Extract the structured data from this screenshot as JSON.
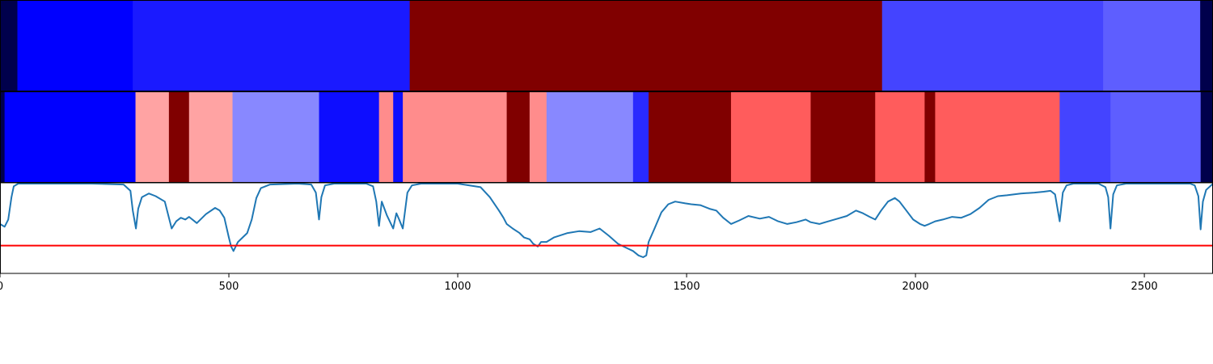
{
  "chart_data": {
    "type": "heatmap",
    "x_range": [
      0,
      2650
    ],
    "x_ticks": [
      0,
      500,
      1000,
      1500,
      2000,
      2500
    ],
    "tracks": [
      {
        "name": "",
        "segments": [
          {
            "start": 0,
            "end": 38,
            "color": "#00004c"
          },
          {
            "start": 38,
            "end": 290,
            "color": "#0000ff"
          },
          {
            "start": 290,
            "end": 895,
            "color": "#1a1aff"
          },
          {
            "start": 895,
            "end": 1927,
            "color": "#800000"
          },
          {
            "start": 1927,
            "end": 2410,
            "color": "#4444ff"
          },
          {
            "start": 2410,
            "end": 2622,
            "color": "#5e5eff"
          },
          {
            "start": 2622,
            "end": 2650,
            "color": "#00004c"
          }
        ]
      },
      {
        "name": "",
        "segments": [
          {
            "start": 0,
            "end": 10,
            "color": "#00004c"
          },
          {
            "start": 10,
            "end": 296,
            "color": "#0000ff"
          },
          {
            "start": 296,
            "end": 369,
            "color": "#ffa3a3"
          },
          {
            "start": 369,
            "end": 413,
            "color": "#800000"
          },
          {
            "start": 413,
            "end": 508,
            "color": "#ffa3a3"
          },
          {
            "start": 508,
            "end": 697,
            "color": "#8888ff"
          },
          {
            "start": 697,
            "end": 828,
            "color": "#0d0dff"
          },
          {
            "start": 828,
            "end": 859,
            "color": "#ff8c8c"
          },
          {
            "start": 859,
            "end": 880,
            "color": "#0d0dff"
          },
          {
            "start": 880,
            "end": 1107,
            "color": "#ff8c8c"
          },
          {
            "start": 1107,
            "end": 1157,
            "color": "#800000"
          },
          {
            "start": 1157,
            "end": 1194,
            "color": "#ff8c8c"
          },
          {
            "start": 1194,
            "end": 1383,
            "color": "#8888ff"
          },
          {
            "start": 1383,
            "end": 1417,
            "color": "#2a2aff"
          },
          {
            "start": 1417,
            "end": 1597,
            "color": "#800000"
          },
          {
            "start": 1597,
            "end": 1771,
            "color": "#ff5c5c"
          },
          {
            "start": 1771,
            "end": 1912,
            "color": "#800000"
          },
          {
            "start": 1912,
            "end": 2020,
            "color": "#ff5c5c"
          },
          {
            "start": 2020,
            "end": 2043,
            "color": "#800000"
          },
          {
            "start": 2043,
            "end": 2315,
            "color": "#ff5c5c"
          },
          {
            "start": 2315,
            "end": 2426,
            "color": "#4444ff"
          },
          {
            "start": 2426,
            "end": 2623,
            "color": "#5e5eff"
          },
          {
            "start": 2623,
            "end": 2650,
            "color": "#00004c"
          }
        ]
      }
    ],
    "line_panel": {
      "type": "line",
      "series": [
        {
          "color": "#1f77b4",
          "points": [
            [
              0,
              0.55
            ],
            [
              10,
              0.52
            ],
            [
              18,
              0.6
            ],
            [
              25,
              0.85
            ],
            [
              30,
              0.97
            ],
            [
              40,
              1.0
            ],
            [
              100,
              1.0
            ],
            [
              200,
              1.0
            ],
            [
              270,
              0.99
            ],
            [
              285,
              0.92
            ],
            [
              290,
              0.7
            ],
            [
              297,
              0.5
            ],
            [
              302,
              0.72
            ],
            [
              310,
              0.85
            ],
            [
              325,
              0.89
            ],
            [
              340,
              0.86
            ],
            [
              360,
              0.8
            ],
            [
              369,
              0.62
            ],
            [
              375,
              0.5
            ],
            [
              385,
              0.58
            ],
            [
              395,
              0.62
            ],
            [
              405,
              0.6
            ],
            [
              413,
              0.63
            ],
            [
              430,
              0.56
            ],
            [
              450,
              0.66
            ],
            [
              470,
              0.73
            ],
            [
              480,
              0.7
            ],
            [
              490,
              0.62
            ],
            [
              500,
              0.4
            ],
            [
              505,
              0.3
            ],
            [
              510,
              0.25
            ],
            [
              515,
              0.3
            ],
            [
              520,
              0.35
            ],
            [
              530,
              0.4
            ],
            [
              540,
              0.45
            ],
            [
              550,
              0.6
            ],
            [
              560,
              0.84
            ],
            [
              570,
              0.95
            ],
            [
              590,
              0.99
            ],
            [
              650,
              1.0
            ],
            [
              680,
              0.99
            ],
            [
              690,
              0.9
            ],
            [
              697,
              0.6
            ],
            [
              702,
              0.85
            ],
            [
              710,
              0.98
            ],
            [
              730,
              1.0
            ],
            [
              800,
              1.0
            ],
            [
              815,
              0.97
            ],
            [
              822,
              0.8
            ],
            [
              828,
              0.53
            ],
            [
              834,
              0.8
            ],
            [
              845,
              0.65
            ],
            [
              859,
              0.5
            ],
            [
              866,
              0.67
            ],
            [
              872,
              0.6
            ],
            [
              880,
              0.5
            ],
            [
              890,
              0.9
            ],
            [
              900,
              0.98
            ],
            [
              920,
              1.0
            ],
            [
              1000,
              1.0
            ],
            [
              1050,
              0.96
            ],
            [
              1070,
              0.85
            ],
            [
              1090,
              0.7
            ],
            [
              1100,
              0.62
            ],
            [
              1107,
              0.55
            ],
            [
              1120,
              0.5
            ],
            [
              1135,
              0.45
            ],
            [
              1145,
              0.4
            ],
            [
              1157,
              0.38
            ],
            [
              1165,
              0.33
            ],
            [
              1175,
              0.3
            ],
            [
              1182,
              0.35
            ],
            [
              1194,
              0.35
            ],
            [
              1210,
              0.4
            ],
            [
              1240,
              0.45
            ],
            [
              1265,
              0.47
            ],
            [
              1290,
              0.46
            ],
            [
              1310,
              0.5
            ],
            [
              1330,
              0.42
            ],
            [
              1350,
              0.33
            ],
            [
              1370,
              0.28
            ],
            [
              1383,
              0.25
            ],
            [
              1395,
              0.2
            ],
            [
              1405,
              0.18
            ],
            [
              1412,
              0.2
            ],
            [
              1417,
              0.35
            ],
            [
              1430,
              0.5
            ],
            [
              1445,
              0.68
            ],
            [
              1460,
              0.77
            ],
            [
              1475,
              0.8
            ],
            [
              1497,
              0.78
            ],
            [
              1510,
              0.77
            ],
            [
              1530,
              0.76
            ],
            [
              1550,
              0.72
            ],
            [
              1565,
              0.7
            ],
            [
              1580,
              0.62
            ],
            [
              1597,
              0.55
            ],
            [
              1615,
              0.59
            ],
            [
              1635,
              0.64
            ],
            [
              1660,
              0.61
            ],
            [
              1680,
              0.63
            ],
            [
              1700,
              0.58
            ],
            [
              1720,
              0.55
            ],
            [
              1740,
              0.57
            ],
            [
              1760,
              0.6
            ],
            [
              1771,
              0.57
            ],
            [
              1790,
              0.55
            ],
            [
              1810,
              0.58
            ],
            [
              1830,
              0.61
            ],
            [
              1850,
              0.64
            ],
            [
              1870,
              0.7
            ],
            [
              1885,
              0.67
            ],
            [
              1900,
              0.63
            ],
            [
              1912,
              0.6
            ],
            [
              1925,
              0.7
            ],
            [
              1940,
              0.8
            ],
            [
              1955,
              0.84
            ],
            [
              1965,
              0.8
            ],
            [
              1980,
              0.7
            ],
            [
              1995,
              0.6
            ],
            [
              2010,
              0.55
            ],
            [
              2020,
              0.53
            ],
            [
              2030,
              0.55
            ],
            [
              2043,
              0.58
            ],
            [
              2060,
              0.6
            ],
            [
              2080,
              0.63
            ],
            [
              2100,
              0.62
            ],
            [
              2120,
              0.66
            ],
            [
              2140,
              0.73
            ],
            [
              2160,
              0.82
            ],
            [
              2180,
              0.86
            ],
            [
              2200,
              0.87
            ],
            [
              2230,
              0.89
            ],
            [
              2260,
              0.9
            ],
            [
              2280,
              0.91
            ],
            [
              2295,
              0.92
            ],
            [
              2305,
              0.88
            ],
            [
              2315,
              0.58
            ],
            [
              2322,
              0.9
            ],
            [
              2330,
              0.98
            ],
            [
              2345,
              1.0
            ],
            [
              2400,
              1.0
            ],
            [
              2415,
              0.96
            ],
            [
              2421,
              0.85
            ],
            [
              2426,
              0.5
            ],
            [
              2432,
              0.88
            ],
            [
              2440,
              0.98
            ],
            [
              2460,
              1.0
            ],
            [
              2600,
              1.0
            ],
            [
              2610,
              0.98
            ],
            [
              2618,
              0.86
            ],
            [
              2623,
              0.49
            ],
            [
              2628,
              0.8
            ],
            [
              2635,
              0.93
            ],
            [
              2650,
              1.0
            ]
          ]
        }
      ],
      "ylim": [
        0,
        1.0
      ],
      "threshold": {
        "value": 0.31,
        "color": "#ff0000"
      }
    }
  }
}
